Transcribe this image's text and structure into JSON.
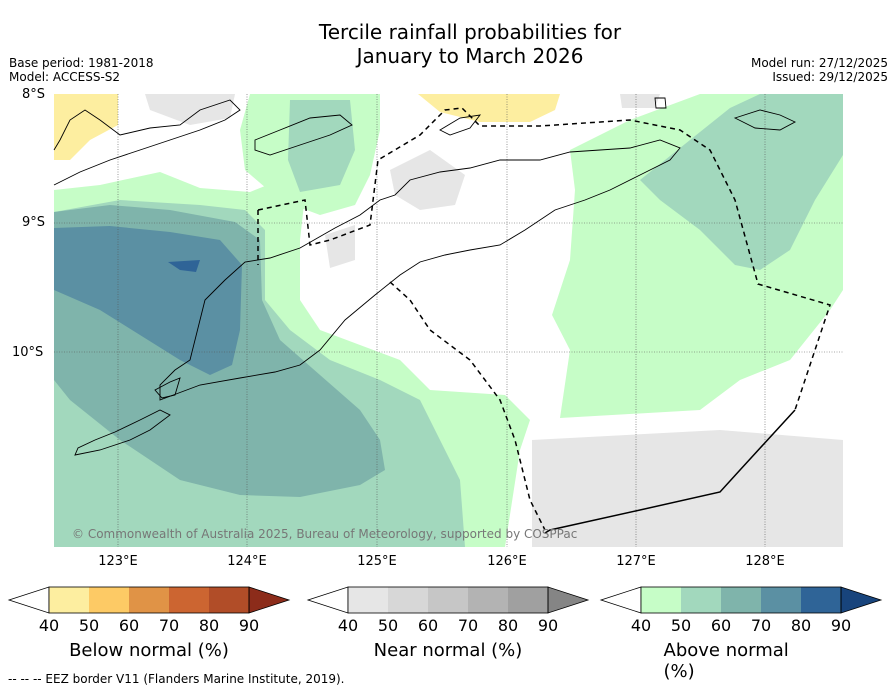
{
  "title": {
    "line1": "Tercile rainfall probabilities for",
    "line2": "January to March 2026"
  },
  "meta": {
    "base_period": "Base period: 1981-2018",
    "model": "Model: ACCESS-S2",
    "model_run": "Model run: 27/12/2025",
    "issued": "Issued: 29/12/2025"
  },
  "axes": {
    "lat_labels": [
      "8°S",
      "9°S",
      "10°S"
    ],
    "lon_labels": [
      "123°E",
      "124°E",
      "125°E",
      "126°E",
      "127°E",
      "128°E"
    ]
  },
  "copyright": "© Commonwealth of Australia 2025, Bureau of Meteorology, supported by COSPPac",
  "colorbars": [
    {
      "label": "Below normal (%)",
      "ticks": [
        "40",
        "50",
        "60",
        "70",
        "80",
        "90"
      ],
      "colors": [
        "#ffffff",
        "#fdeea0",
        "#fdca65",
        "#e09346",
        "#cc6531",
        "#b14d28",
        "#8c2c1a"
      ]
    },
    {
      "label": "Near normal (%)",
      "ticks": [
        "40",
        "50",
        "60",
        "70",
        "80",
        "90"
      ],
      "colors": [
        "#ffffff",
        "#e6e6e6",
        "#d7d7d7",
        "#c6c6c6",
        "#b3b3b3",
        "#a0a0a0",
        "#858585"
      ]
    },
    {
      "label": "Above normal (%)",
      "ticks": [
        "40",
        "50",
        "60",
        "70",
        "80",
        "90"
      ],
      "colors": [
        "#ffffff",
        "#c6fdc7",
        "#a2d8bd",
        "#7fb4ab",
        "#5b90a3",
        "#2f6497",
        "#18447c"
      ]
    }
  ],
  "footnote": "--  --  -- EEZ border V11 (Flanders Marine Institute, 2019)."
}
